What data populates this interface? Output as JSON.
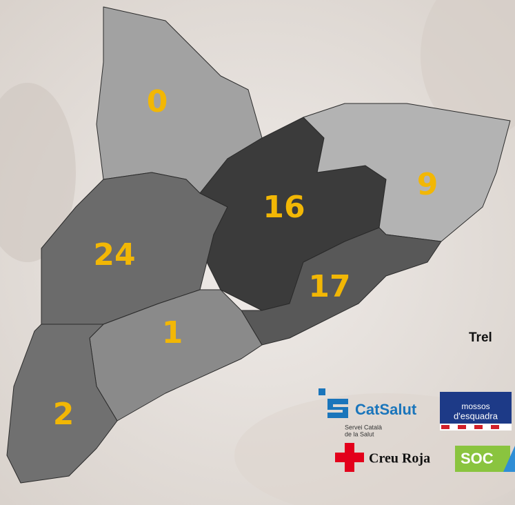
{
  "map": {
    "regions": [
      {
        "label": 0
      },
      {
        "label": 24
      },
      {
        "label": 16
      },
      {
        "label": 9
      },
      {
        "label": 17
      },
      {
        "label": 1
      },
      {
        "label": 2
      }
    ],
    "side_text": "Trel",
    "logos": {
      "catsalut": {
        "name": "CatSalut",
        "line1": "Servei Català",
        "line2": "de la Salut"
      },
      "mossos": {
        "line1": "mossos",
        "line2": "d'esquadra"
      },
      "creu_roja": "Creu Roja",
      "soc": "SOC"
    }
  }
}
